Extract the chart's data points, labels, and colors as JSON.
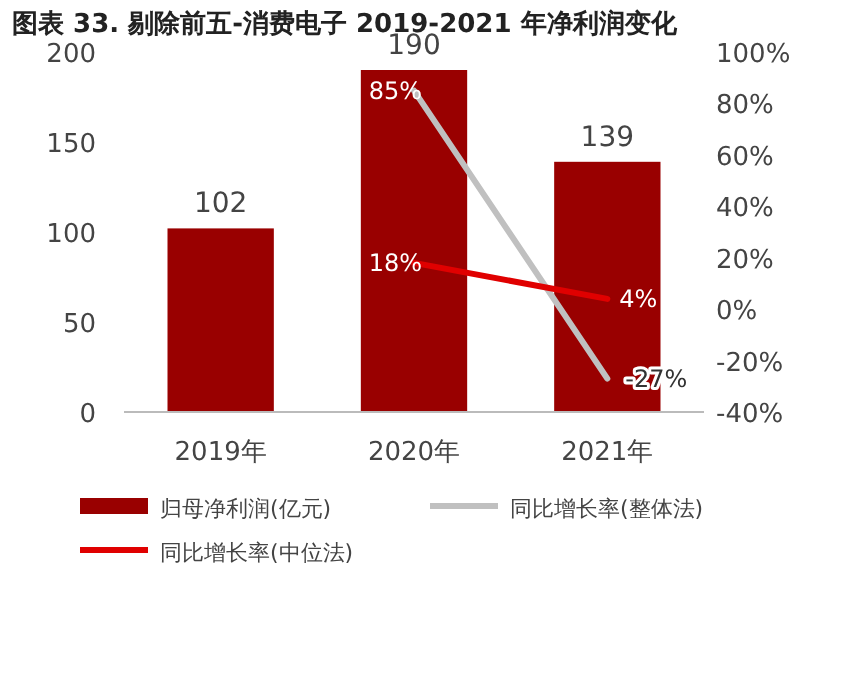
{
  "chart_data": {
    "type": "bar",
    "title": "图表 33. 剔除前五-消费电子 2019-2021 年净利润变化",
    "categories": [
      "2019年",
      "2020年",
      "2021年"
    ],
    "series": [
      {
        "name": "归母净利润(亿元)",
        "color": "#990000",
        "values": [
          102,
          190,
          139
        ],
        "value_labels": [
          "102",
          "190",
          "139"
        ]
      },
      {
        "name": "同比增长率(整体法)",
        "type": "line",
        "axis": "y2",
        "color": "#c0c0c0",
        "values": [
          null,
          85,
          -27
        ],
        "value_labels": [
          null,
          "85%",
          "-27%"
        ]
      },
      {
        "name": "同比增长率(中位法)",
        "type": "line",
        "axis": "y2",
        "color": "#e00000",
        "values": [
          null,
          18,
          4
        ],
        "value_labels": [
          null,
          "18%",
          "4%"
        ]
      }
    ],
    "ylim": [
      0,
      200
    ],
    "yticks": [
      0,
      50,
      100,
      150,
      200
    ],
    "y2lim": [
      -40,
      100
    ],
    "y2ticks": [
      {
        "value": -40,
        "label": "-40%"
      },
      {
        "value": -20,
        "label": "-20%"
      },
      {
        "value": 0,
        "label": "0%"
      },
      {
        "value": 20,
        "label": "20%"
      },
      {
        "value": 40,
        "label": "40%"
      },
      {
        "value": 60,
        "label": "60%"
      },
      {
        "value": 80,
        "label": "80%"
      },
      {
        "value": 100,
        "label": "100%"
      }
    ],
    "legend": "bottom",
    "marker": "none"
  }
}
